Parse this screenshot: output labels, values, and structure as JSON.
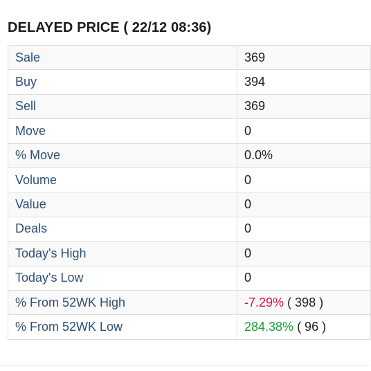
{
  "header": {
    "title": "DELAYED PRICE ( 22/12 08:36)"
  },
  "rows": [
    {
      "label": "Sale",
      "value": "369"
    },
    {
      "label": "Buy",
      "value": "394"
    },
    {
      "label": "Sell",
      "value": "369"
    },
    {
      "label": "Move",
      "value": "0"
    },
    {
      "label": "% Move",
      "value": "0.0%"
    },
    {
      "label": "Volume",
      "value": "0"
    },
    {
      "label": "Value",
      "value": "0"
    },
    {
      "label": "Deals",
      "value": "0"
    },
    {
      "label": "Today's High",
      "value": "0"
    },
    {
      "label": "Today's Low",
      "value": "0"
    }
  ],
  "from_52wk_high": {
    "label": "% From 52WK High",
    "percent": "-7.29%",
    "price": " ( 398 )"
  },
  "from_52wk_low": {
    "label": "% From 52WK Low",
    "percent": "284.38%",
    "price": " ( 96 )"
  },
  "colors": {
    "label_text": "#2e4f73",
    "negative": "#e0103a",
    "positive": "#1aa23a",
    "striped_row": "#f9f9f9",
    "border": "#dddddd"
  }
}
